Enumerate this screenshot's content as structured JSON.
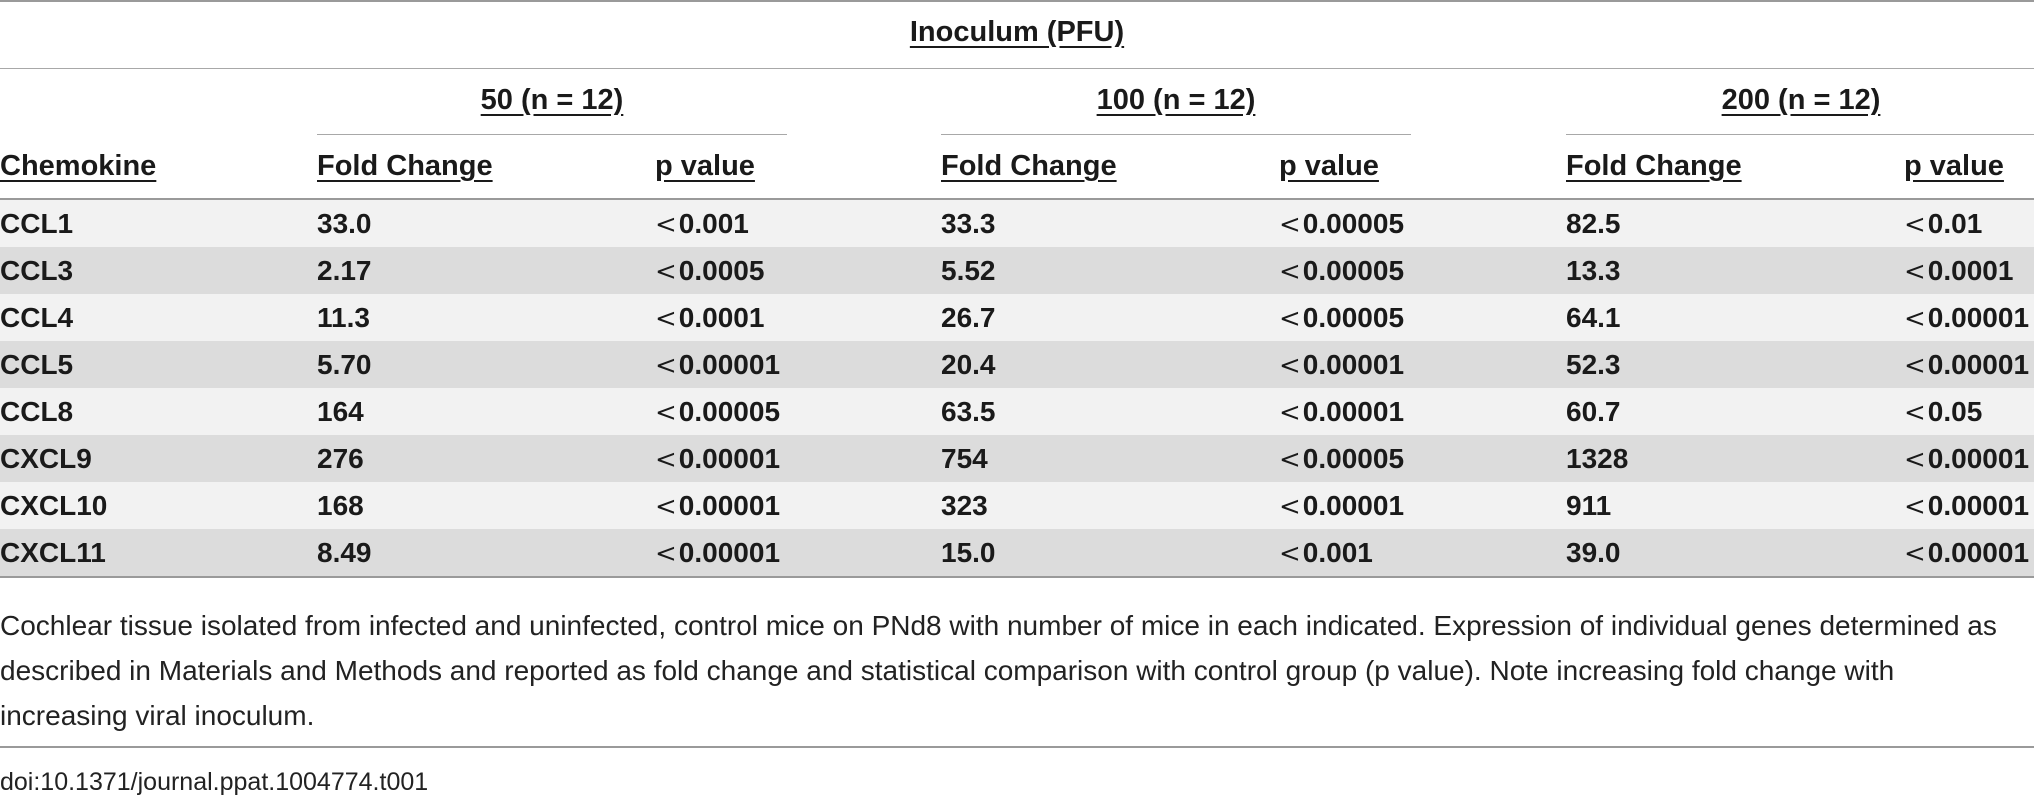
{
  "table": {
    "group_header": "Inoculum (PFU)",
    "dose_groups": [
      "50 (n = 12)",
      "100 (n = 12)",
      "200 (n = 12)"
    ],
    "columns": {
      "chemokine": "Chemokine",
      "fold_change": "Fold Change",
      "p_value": "p value"
    },
    "less_than_symbol": "<",
    "rows": [
      {
        "name": "CCL1",
        "fc50": "33.0",
        "p50": "0.001",
        "fc100": "33.3",
        "p100": "0.00005",
        "fc200": "82.5",
        "p200": "0.01"
      },
      {
        "name": "CCL3",
        "fc50": "2.17",
        "p50": "0.0005",
        "fc100": "5.52",
        "p100": "0.00005",
        "fc200": "13.3",
        "p200": "0.0001"
      },
      {
        "name": "CCL4",
        "fc50": "11.3",
        "p50": "0.0001",
        "fc100": "26.7",
        "p100": "0.00005",
        "fc200": "64.1",
        "p200": "0.00001"
      },
      {
        "name": "CCL5",
        "fc50": "5.70",
        "p50": "0.00001",
        "fc100": "20.4",
        "p100": "0.00001",
        "fc200": "52.3",
        "p200": "0.00001"
      },
      {
        "name": "CCL8",
        "fc50": "164",
        "p50": "0.00005",
        "fc100": "63.5",
        "p100": "0.00001",
        "fc200": "60.7",
        "p200": "0.05"
      },
      {
        "name": "CXCL9",
        "fc50": "276",
        "p50": "0.00001",
        "fc100": "754",
        "p100": "0.00005",
        "fc200": "1328",
        "p200": "0.00001"
      },
      {
        "name": "CXCL10",
        "fc50": "168",
        "p50": "0.00001",
        "fc100": "323",
        "p100": "0.00001",
        "fc200": "911",
        "p200": "0.00001"
      },
      {
        "name": "CXCL11",
        "fc50": "8.49",
        "p50": "0.00001",
        "fc100": "15.0",
        "p100": "0.001",
        "fc200": "39.0",
        "p200": "0.00001"
      }
    ]
  },
  "caption": "Cochlear tissue isolated from infected and uninfected, control mice on PNd8 with number of mice in each indicated. Expression of individual genes determined as described in Materials and Methods and reported as fold change and statistical comparison with control group (p value). Note increasing fold change with increasing viral inoculum.",
  "doi": "doi:10.1371/journal.ppat.1004774.t001"
}
